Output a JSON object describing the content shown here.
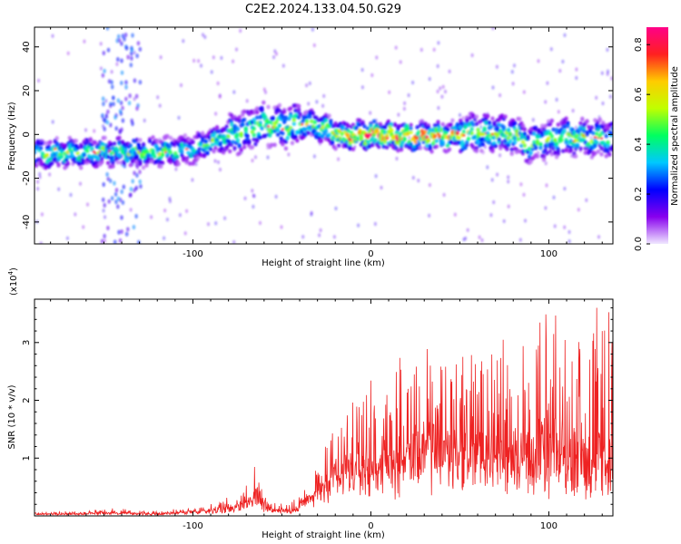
{
  "title": "C2E2.2024.133.04.50.G29",
  "chart_data": [
    {
      "type": "heatmap",
      "title": "C2E2.2024.133.04.50.G29",
      "xlabel": "Height of straight line (km)",
      "ylabel": "Frequency (Hz)",
      "xlim": [
        -189,
        136
      ],
      "ylim": [
        -50,
        49
      ],
      "x_ticks": [
        -100,
        0,
        100
      ],
      "x_tick_labels": [
        "-100",
        "0",
        "100"
      ],
      "y_ticks": [
        -40,
        -20,
        0,
        20,
        40
      ],
      "y_tick_labels": [
        "-40",
        "-20",
        "0",
        "20",
        "40"
      ],
      "colorbar": {
        "label": "Normalized spectral amplitude",
        "range": [
          0.0,
          0.87
        ],
        "ticks": [
          0.0,
          0.2,
          0.4,
          0.6,
          0.8
        ],
        "tick_labels": [
          "0.0",
          "0.2",
          "0.4",
          "0.6",
          "0.8"
        ],
        "colors": [
          "#f0e8ff",
          "#8800ee",
          "#0000ff",
          "#00c8ff",
          "#00ff60",
          "#c0ff00",
          "#ffcc00",
          "#ff2020",
          "#ff0088"
        ]
      },
      "ridge": {
        "x": [
          -189,
          -150,
          -120,
          -100,
          -85,
          -70,
          -60,
          -50,
          -40,
          -30,
          -15,
          0,
          20,
          40,
          60,
          80,
          90,
          95,
          110,
          136
        ],
        "freq_hz": [
          -9,
          -8,
          -8,
          -7,
          -2,
          2,
          5,
          3,
          5,
          4,
          -1,
          0,
          -1,
          -1,
          1,
          0,
          -5,
          -3,
          -1,
          -2
        ],
        "peak_amplitude": [
          0.6,
          0.5,
          0.55,
          0.45,
          0.5,
          0.5,
          0.55,
          0.55,
          0.6,
          0.6,
          0.7,
          0.85,
          0.85,
          0.75,
          0.6,
          0.55,
          0.55,
          0.5,
          0.55,
          0.5
        ]
      },
      "interference_x_km": [
        -145,
        -135
      ]
    },
    {
      "type": "line",
      "xlabel": "Height of straight line (km)",
      "ylabel": "SNR (10 * v/v)",
      "y_multiplier": "(x10",
      "y_multiplier_exp": "4",
      "y_multiplier_close": ")",
      "xlim": [
        -189,
        136
      ],
      "ylim": [
        0,
        3.75
      ],
      "x_ticks": [
        -100,
        0,
        100
      ],
      "x_tick_labels": [
        "-100",
        "0",
        "100"
      ],
      "y_ticks": [
        1,
        2,
        3
      ],
      "y_tick_labels": [
        "1",
        "2",
        "3"
      ],
      "color": "#ee2222",
      "envelope": {
        "x": [
          -189,
          -170,
          -150,
          -120,
          -105,
          -95,
          -80,
          -70,
          -65,
          -60,
          -55,
          -45,
          -35,
          -25,
          -15,
          -5,
          5,
          15,
          25,
          35,
          45,
          55,
          65,
          75,
          85,
          95,
          105,
          115,
          125,
          136
        ],
        "baseline": [
          0.03,
          0.03,
          0.05,
          0.03,
          0.06,
          0.08,
          0.12,
          0.2,
          0.3,
          0.2,
          0.1,
          0.08,
          0.25,
          0.45,
          0.6,
          0.7,
          0.8,
          0.9,
          0.95,
          1.0,
          1.0,
          0.9,
          0.85,
          0.8,
          0.75,
          0.75,
          0.7,
          0.7,
          0.7,
          0.65
        ],
        "amplitude": [
          0.04,
          0.05,
          0.09,
          0.05,
          0.09,
          0.12,
          0.2,
          0.35,
          0.6,
          0.3,
          0.15,
          0.12,
          0.4,
          0.85,
          1.3,
          1.5,
          1.6,
          1.7,
          1.9,
          2.0,
          2.1,
          2.2,
          2.4,
          2.6,
          2.7,
          2.9,
          2.9,
          2.8,
          2.9,
          2.8
        ]
      }
    }
  ]
}
